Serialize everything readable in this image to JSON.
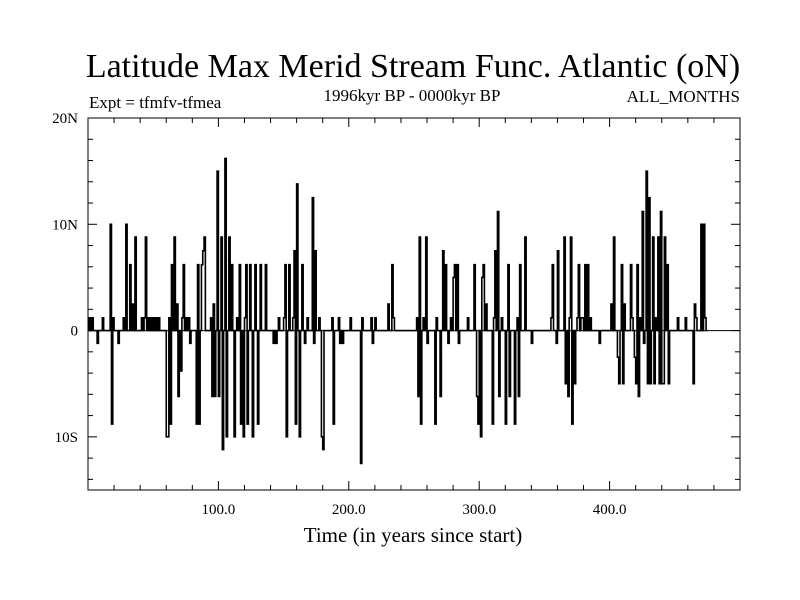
{
  "chart_data": {
    "type": "line",
    "title": "Latitude Max Merid Stream Func. Atlantic (oN)",
    "subtitle_left": "Expt = tfmfv-tfmea",
    "subtitle_center": "1996kyr BP - 0000kyr BP",
    "subtitle_right": "ALL_MONTHS",
    "xlabel": "Time (in years since start)",
    "ylabel": "",
    "xlim": [
      0,
      500
    ],
    "ylim": [
      -15,
      20
    ],
    "x_ticks": [
      {
        "value": 100,
        "label": "100.0"
      },
      {
        "value": 200,
        "label": "200.0"
      },
      {
        "value": 300,
        "label": "300.0"
      },
      {
        "value": 400,
        "label": "400.0"
      }
    ],
    "y_ticks": [
      {
        "value": 20,
        "label": "20N"
      },
      {
        "value": 10,
        "label": "10N"
      },
      {
        "value": 0,
        "label": "0"
      },
      {
        "value": -10,
        "label": "10S"
      }
    ],
    "series": [
      {
        "name": "latitude",
        "color": "#000000",
        "x_start": 0,
        "x_step": 1,
        "values": [
          0,
          1.2,
          0,
          1.2,
          0,
          0,
          0,
          -1.2,
          0,
          0,
          0,
          1.2,
          0,
          0,
          0,
          0,
          0,
          10,
          -8.8,
          1.2,
          0,
          0,
          0,
          -1.2,
          0,
          0,
          0,
          1.2,
          0,
          10,
          0,
          0,
          6.2,
          0,
          2.5,
          0,
          8.8,
          0,
          0,
          0,
          0,
          1.2,
          0,
          1.2,
          8.8,
          0,
          1.2,
          0,
          1.2,
          0,
          1.2,
          0,
          1.2,
          0,
          1.2,
          0,
          0,
          0,
          0,
          0,
          -10,
          -10,
          1.2,
          -8.8,
          6.2,
          0,
          8.8,
          0,
          2.5,
          -6.2,
          0,
          -3.8,
          1.2,
          6.2,
          0,
          1.2,
          0,
          1.2,
          -1.2,
          0,
          0,
          0,
          0,
          -8.8,
          6.2,
          -8.8,
          0,
          6.2,
          7.5,
          8.8,
          0,
          0,
          0,
          0,
          1.2,
          -6.2,
          2.5,
          -6.2,
          0,
          15,
          -6.2,
          0,
          8.8,
          -11.2,
          0,
          16.2,
          -10,
          0,
          8.8,
          0,
          6.2,
          0,
          -10,
          0,
          1.2,
          0,
          6.2,
          -8.8,
          0,
          -10,
          1.2,
          6.2,
          -8.8,
          0,
          6.2,
          0,
          -10,
          0,
          6.2,
          0,
          -8.8,
          0,
          6.2,
          0,
          0,
          0,
          6.2,
          0,
          0,
          0,
          0,
          0,
          -1.2,
          0,
          -1.2,
          0,
          1.2,
          0,
          0,
          0,
          1.2,
          6.2,
          -10,
          0,
          6.2,
          0,
          0,
          1.2,
          7.5,
          -8.8,
          13.8,
          0,
          -10,
          0,
          6.2,
          0,
          -1.2,
          0,
          1.2,
          0,
          0,
          0,
          12.5,
          -1.2,
          7.5,
          0,
          0,
          1.2,
          0,
          -10,
          -11.2,
          0,
          0,
          0,
          0,
          0,
          0,
          1.2,
          -8.8,
          0,
          0,
          0,
          1.2,
          -1.2,
          0,
          -1.2,
          0,
          0,
          0,
          0,
          0,
          1.2,
          0,
          0,
          0,
          0,
          0,
          0,
          0,
          -12.5,
          1.2,
          0,
          0,
          0,
          0,
          0,
          0,
          1.2,
          -1.2,
          0,
          1.2,
          0,
          0,
          0,
          0,
          0,
          0,
          0,
          0,
          0,
          2.5,
          0,
          0,
          6.2,
          1.2,
          0,
          0,
          0,
          0,
          0,
          0,
          0,
          0,
          0,
          0,
          0,
          0,
          0,
          0,
          0,
          0,
          0,
          1.2,
          -6.2,
          8.8,
          -8.8,
          0,
          1.2,
          0,
          8.8,
          -1.2,
          0,
          0,
          0,
          0,
          0,
          -8.8,
          1.2,
          0,
          0,
          -6.2,
          0,
          7.5,
          0,
          6.2,
          0,
          -1.2,
          0,
          1.2,
          0,
          5,
          6.2,
          0,
          6.2,
          -1.2,
          0,
          0,
          0,
          0,
          0,
          0,
          1.2,
          0,
          0,
          0,
          0,
          6.2,
          0,
          -6.2,
          -8.8,
          0,
          -10,
          5,
          6.2,
          0,
          2.5,
          0,
          0,
          0,
          0,
          -8.8,
          1.2,
          7.5,
          0,
          11.2,
          -6.2,
          0,
          1.2,
          0,
          0,
          -8.8,
          0,
          6.2,
          -6.2,
          0,
          0,
          0,
          -8.8,
          0,
          1.2,
          -6.2,
          6.2,
          0,
          0,
          0,
          8.8,
          0,
          0,
          0,
          0,
          -1.2,
          0,
          0,
          0,
          0,
          0,
          0,
          0,
          0,
          0,
          0,
          0,
          0,
          0,
          0,
          1.2,
          6.2,
          0,
          0,
          -1.2,
          7.5,
          0,
          0,
          0,
          0,
          8.8,
          -5,
          0,
          -6.2,
          1.2,
          8.8,
          -8.8,
          0,
          -5,
          0,
          1.2,
          6.2,
          0,
          1.2,
          1.2,
          0,
          6.2,
          0,
          6.2,
          0,
          1.2,
          0,
          0,
          0,
          0,
          0,
          0,
          -1.2,
          0,
          0,
          0,
          0,
          0,
          0,
          0,
          0,
          2.5,
          0,
          8.8,
          0,
          0,
          -2.5,
          -5,
          0,
          6.2,
          -5,
          2.5,
          0,
          0,
          0,
          0,
          6.2,
          1.2,
          0,
          -2.5,
          -5,
          6.2,
          -6.2,
          1.2,
          0,
          11.2,
          -1.2,
          0,
          15,
          -5,
          12.5,
          -5,
          0,
          8.8,
          -5,
          1.2,
          0,
          8.8,
          -5,
          11.2,
          -5,
          -5,
          8.8,
          0,
          6.2,
          -5,
          0,
          0,
          0,
          0,
          0,
          0,
          1.2,
          0,
          0,
          0,
          0,
          0,
          1.2,
          0,
          0,
          0,
          0,
          0,
          -5,
          2.5,
          1.2,
          0,
          0,
          0,
          10,
          0,
          10,
          1.2,
          0
        ]
      }
    ]
  }
}
